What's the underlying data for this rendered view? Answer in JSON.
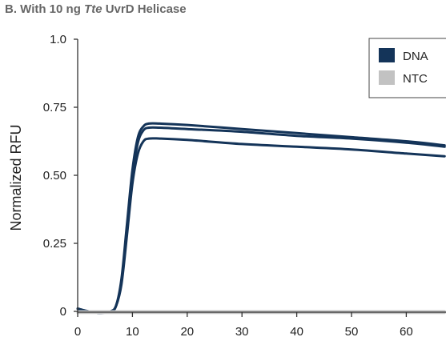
{
  "panel_title": {
    "prefix": "B. With 10 ng ",
    "italic": "Tte",
    "suffix": " UvrD Helicase"
  },
  "chart_data": {
    "type": "line",
    "title": "B. With 10 ng Tte UvrD Helicase",
    "ylabel": "Normalized RFU",
    "xlabel": "",
    "xlim": [
      0,
      67
    ],
    "ylim": [
      0,
      1.0
    ],
    "x_ticks": [
      0,
      10,
      20,
      30,
      40,
      50,
      60
    ],
    "y_ticks": [
      0,
      0.25,
      0.5,
      0.75,
      1.0
    ],
    "y_tick_labels": [
      "0",
      "0.25",
      "0.50",
      "0.75",
      "1.0"
    ],
    "grid": false,
    "legend_position": "top-right",
    "legend": [
      {
        "label": "DNA",
        "color": "#143459"
      },
      {
        "label": "NTC",
        "color": "#c2c2c2"
      }
    ],
    "series": [
      {
        "name": "DNA",
        "color": "#143459",
        "x": [
          0,
          2,
          4,
          6,
          7,
          8,
          9,
          10,
          11,
          12,
          13,
          15,
          20,
          30,
          40,
          50,
          60,
          67
        ],
        "y": [
          0.01,
          0.0,
          -0.005,
          0.0,
          0.02,
          0.12,
          0.32,
          0.52,
          0.64,
          0.68,
          0.69,
          0.69,
          0.685,
          0.67,
          0.655,
          0.64,
          0.625,
          0.61
        ]
      },
      {
        "name": "DNA",
        "color": "#143459",
        "x": [
          0,
          2,
          4,
          6,
          7,
          8,
          9,
          10,
          11,
          12,
          13,
          15,
          20,
          30,
          40,
          50,
          60,
          67
        ],
        "y": [
          0.01,
          0.0,
          -0.005,
          0.0,
          0.02,
          0.11,
          0.3,
          0.5,
          0.62,
          0.665,
          0.675,
          0.675,
          0.67,
          0.66,
          0.645,
          0.635,
          0.62,
          0.605
        ]
      },
      {
        "name": "DNA",
        "color": "#143459",
        "x": [
          0,
          2,
          4,
          6,
          7,
          8,
          9,
          10,
          11,
          12,
          13,
          15,
          20,
          30,
          40,
          50,
          60,
          67
        ],
        "y": [
          0.01,
          0.0,
          -0.005,
          0.0,
          0.02,
          0.1,
          0.28,
          0.47,
          0.58,
          0.625,
          0.635,
          0.635,
          0.63,
          0.615,
          0.605,
          0.595,
          0.58,
          0.57
        ]
      },
      {
        "name": "NTC",
        "color": "#c2c2c2",
        "x": [
          0,
          67
        ],
        "y": [
          0.0,
          0.0
        ]
      },
      {
        "name": "NTC",
        "color": "#c2c2c2",
        "x": [
          0,
          67
        ],
        "y": [
          -0.005,
          -0.005
        ]
      }
    ]
  }
}
